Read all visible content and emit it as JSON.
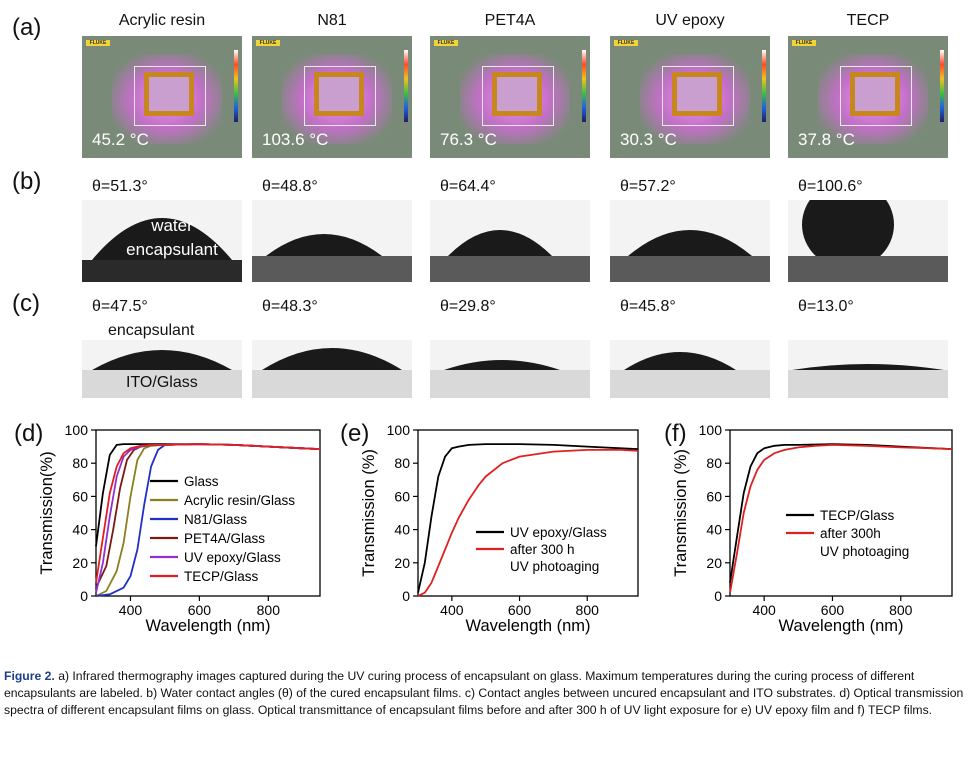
{
  "panels": {
    "a": "(a)",
    "b": "(b)",
    "c": "(c)",
    "d": "(d)",
    "e": "(e)",
    "f": "(f)"
  },
  "materials": [
    "Acrylic resin",
    "N81",
    "PET4A",
    "UV epoxy",
    "TECP"
  ],
  "thermography": {
    "brand": "FLUKE",
    "temps": [
      "45.2 °C",
      "103.6 °C",
      "76.3 °C",
      "30.3 °C",
      "37.8 °C"
    ]
  },
  "water_angles": [
    "θ=51.3°",
    "θ=48.8°",
    "θ=64.4°",
    "θ=57.2°",
    "θ=100.6°"
  ],
  "ito_angles": [
    "θ=47.5°",
    "θ=48.3°",
    "θ=29.8°",
    "θ=45.8°",
    "θ=13.0°"
  ],
  "drop_labels": {
    "water": "water",
    "encapsulant": "encapsulant",
    "ito": "ITO/Glass"
  },
  "chart_data": [
    {
      "panel": "(d)",
      "type": "line",
      "xlabel": "Wavelength (nm)",
      "ylabel": "Transmission(%)",
      "xlim": [
        300,
        950
      ],
      "ylim": [
        0,
        100
      ],
      "xticks": [
        400,
        600,
        800
      ],
      "yticks": [
        0,
        20,
        40,
        60,
        80,
        100
      ],
      "legend_position": "center-right",
      "series": [
        {
          "name": "Glass",
          "color": "#000000",
          "x": [
            300,
            320,
            340,
            360,
            380,
            400,
            450,
            500,
            600,
            700,
            800,
            900,
            950
          ],
          "y": [
            30,
            62,
            85,
            91,
            91.5,
            91.5,
            91.5,
            91.5,
            91.5,
            91,
            90,
            89,
            88.5
          ]
        },
        {
          "name": "Acrylic resin/Glass",
          "color": "#8a8020",
          "x": [
            300,
            330,
            360,
            380,
            400,
            420,
            440,
            460,
            500,
            600,
            700,
            800,
            900,
            950
          ],
          "y": [
            0,
            3,
            15,
            32,
            60,
            82,
            89,
            90.5,
            91,
            91.5,
            91,
            90,
            89,
            88.5
          ]
        },
        {
          "name": "N81/Glass",
          "color": "#2030c8",
          "x": [
            300,
            340,
            380,
            400,
            420,
            440,
            460,
            480,
            500,
            600,
            700,
            800,
            900,
            950
          ],
          "y": [
            0,
            1,
            5,
            12,
            28,
            55,
            78,
            88,
            91,
            91.5,
            91,
            90,
            89,
            88.5
          ]
        },
        {
          "name": "PET4A/Glass",
          "color": "#7a1a10",
          "x": [
            300,
            330,
            350,
            370,
            390,
            410,
            430,
            460,
            500,
            600,
            700,
            800,
            900,
            950
          ],
          "y": [
            5,
            18,
            40,
            65,
            82,
            88,
            90,
            91,
            91,
            91.5,
            91,
            90,
            89,
            88.5
          ]
        },
        {
          "name": "UV epoxy/Glass",
          "color": "#9030d0",
          "x": [
            300,
            320,
            340,
            360,
            380,
            400,
            430,
            460,
            500,
            600,
            700,
            800,
            900,
            950
          ],
          "y": [
            2,
            20,
            48,
            72,
            84,
            88,
            90,
            91,
            91,
            91.5,
            91,
            90,
            89,
            88.5
          ]
        },
        {
          "name": "TECP/Glass",
          "color": "#e02020",
          "x": [
            300,
            320,
            340,
            360,
            380,
            400,
            430,
            460,
            500,
            600,
            700,
            800,
            900,
            950
          ],
          "y": [
            8,
            35,
            62,
            78,
            86,
            89,
            90.5,
            91,
            91,
            91.5,
            91,
            90,
            89,
            88.5
          ]
        }
      ]
    },
    {
      "panel": "(e)",
      "type": "line",
      "xlabel": "Wavelength (nm)",
      "ylabel": "Transmission (%)",
      "xlim": [
        300,
        950
      ],
      "ylim": [
        0,
        100
      ],
      "xticks": [
        400,
        600,
        800
      ],
      "yticks": [
        0,
        20,
        40,
        60,
        80,
        100
      ],
      "legend_position": "lower-right",
      "series": [
        {
          "name": "UV epoxy/Glass",
          "color": "#000000",
          "x": [
            300,
            320,
            340,
            360,
            380,
            400,
            420,
            450,
            500,
            600,
            700,
            800,
            900,
            950
          ],
          "y": [
            2,
            20,
            48,
            72,
            84,
            89,
            90,
            91,
            91.5,
            91.5,
            91,
            90,
            89,
            88.5
          ]
        },
        {
          "name": "after 300 h UV photoaging",
          "color": "#e02020",
          "x": [
            300,
            320,
            340,
            360,
            380,
            400,
            420,
            450,
            480,
            500,
            550,
            600,
            700,
            800,
            900,
            950
          ],
          "y": [
            0,
            2,
            8,
            18,
            28,
            38,
            47,
            58,
            67,
            72,
            80,
            84,
            87,
            88,
            88,
            87.5
          ]
        }
      ]
    },
    {
      "panel": "(f)",
      "type": "line",
      "xlabel": "Wavelength (nm)",
      "ylabel": "Transmission (%)",
      "xlim": [
        300,
        950
      ],
      "ylim": [
        0,
        100
      ],
      "xticks": [
        400,
        600,
        800
      ],
      "yticks": [
        0,
        20,
        40,
        60,
        80,
        100
      ],
      "legend_position": "center-right",
      "series": [
        {
          "name": "TECP/Glass",
          "color": "#000000",
          "x": [
            300,
            320,
            340,
            360,
            380,
            400,
            430,
            460,
            500,
            600,
            700,
            800,
            900,
            950
          ],
          "y": [
            8,
            35,
            62,
            78,
            86,
            89,
            90.5,
            91,
            91,
            91.5,
            91,
            90,
            89,
            88.5
          ]
        },
        {
          "name": "after 300h UV photoaging",
          "color": "#e02020",
          "x": [
            300,
            320,
            340,
            360,
            380,
            400,
            430,
            460,
            500,
            550,
            600,
            700,
            800,
            900,
            950
          ],
          "y": [
            2,
            25,
            50,
            66,
            76,
            82,
            86,
            88,
            89.5,
            90.5,
            91,
            90.5,
            89.5,
            89,
            88.5
          ]
        }
      ]
    }
  ],
  "caption": {
    "label": "Figure 2.",
    "text": "a) Infrared thermography images captured during the UV curing process of encapsulant on glass. Maximum temperatures during the curing process of different encapsulants are labeled. b) Water contact angles (θ) of the cured encapsulant films. c) Contact angles between uncured encapsulant and ITO substrates. d) Optical transmission spectra of different encapsulant films on glass. Optical transmittance of encapsulant films before and after 300 h of UV light exposure for e) UV epoxy film and f) TECP films."
  }
}
